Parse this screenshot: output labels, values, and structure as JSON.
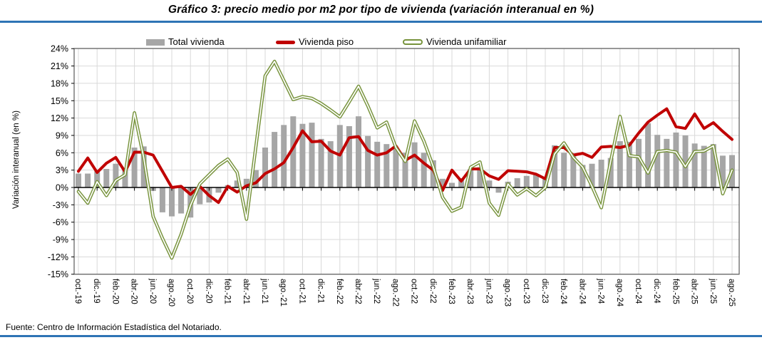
{
  "title": "Gráfico 3: precio medio por m2 por tipo de vivienda (variación interanual en %)",
  "accent_color": "#2E74B5",
  "legend": {
    "items": [
      {
        "label": "Total vivienda",
        "type": "bar",
        "color": "#A6A6A6"
      },
      {
        "label": "Vivienda piso",
        "type": "line",
        "color": "#C00000"
      },
      {
        "label": "Vivienda unifamiliar",
        "type": "outlined-line",
        "color": "#77933C"
      }
    ]
  },
  "y_axis": {
    "title": "Variación interanual (en %)",
    "tick_labels": [
      "24%",
      "21%",
      "18%",
      "15%",
      "12%",
      "9%",
      "6%",
      "3%",
      "0%",
      "-3%",
      "-6%",
      "-9%",
      "-12%",
      "-15%"
    ],
    "min": -15,
    "max": 24,
    "step": 3
  },
  "x_axis": {
    "tick_labels": [
      "oct.-19",
      "dic.-19",
      "feb.-20",
      "abr.-20",
      "jun.-20",
      "ago.-20",
      "oct.-20",
      "dic.-20",
      "feb.-21",
      "abr.-21",
      "jun.-21",
      "ago.-21",
      "oct.-21",
      "dic.-21",
      "feb.-22",
      "abr.-22",
      "jun.-22",
      "ago.-22",
      "oct.-22",
      "dic.-22",
      "feb.-23",
      "abr.-23",
      "jun.-23",
      "ago.-23",
      "oct.-23",
      "dic.-23",
      "feb.-24",
      "abr.-24",
      "jun.-24",
      "ago.-24",
      "oct.-24",
      "dic.-24",
      "feb.-25",
      "abr.-25",
      "jun.-25",
      "ago.-25"
    ],
    "label_interval_months": 2
  },
  "footer": {
    "source": "Fuente: Centro de Información Estadística del Notariado."
  },
  "chart_data": {
    "type": "bar",
    "subtype": "combo-bar-lines",
    "title": "Gráfico 3: precio medio por m2 por tipo de vivienda (variación interanual en %)",
    "xlabel": "",
    "ylabel": "Variación interanual (en %)",
    "ylim": [
      -15,
      24
    ],
    "grid": true,
    "legend_position": "top",
    "x": [
      "oct-19",
      "nov-19",
      "dic-19",
      "ene-20",
      "feb-20",
      "mar-20",
      "abr-20",
      "may-20",
      "jun-20",
      "jul-20",
      "ago-20",
      "sep-20",
      "oct-20",
      "nov-20",
      "dic-20",
      "ene-21",
      "feb-21",
      "mar-21",
      "abr-21",
      "may-21",
      "jun-21",
      "jul-21",
      "ago-21",
      "sep-21",
      "oct-21",
      "nov-21",
      "dic-21",
      "ene-22",
      "feb-22",
      "mar-22",
      "abr-22",
      "may-22",
      "jun-22",
      "jul-22",
      "ago-22",
      "sep-22",
      "oct-22",
      "nov-22",
      "dic-22",
      "ene-23",
      "feb-23",
      "mar-23",
      "abr-23",
      "may-23",
      "jun-23",
      "jul-23",
      "ago-23",
      "sep-23",
      "oct-23",
      "nov-23",
      "dic-23",
      "ene-24",
      "feb-24",
      "mar-24",
      "abr-24",
      "may-24",
      "jun-24",
      "jul-24",
      "ago-24",
      "sep-24",
      "oct-24",
      "nov-24",
      "dic-24",
      "ene-25",
      "feb-25",
      "mar-25",
      "abr-25",
      "may-25",
      "jun-25",
      "jul-25",
      "ago-25"
    ],
    "series": [
      {
        "name": "Total vivienda",
        "type": "bar",
        "color": "#A6A6A6",
        "values": [
          2.4,
          2.4,
          2.8,
          3.2,
          4.1,
          3.3,
          6.9,
          7.1,
          -0.6,
          -4.3,
          -5.0,
          -4.5,
          -5.2,
          -2.9,
          -2.6,
          -0.9,
          0.4,
          1.2,
          1.5,
          3.0,
          6.9,
          9.6,
          10.8,
          12.3,
          11.0,
          11.2,
          8.4,
          8.0,
          10.8,
          10.6,
          12.3,
          8.9,
          7.9,
          7.5,
          6.9,
          6.0,
          7.8,
          6.0,
          4.7,
          1.5,
          0.8,
          1.6,
          3.2,
          3.5,
          1.2,
          -0.9,
          1.0,
          1.6,
          2.0,
          2.2,
          1.8,
          7.3,
          6.0,
          5.8,
          3.9,
          4.1,
          4.8,
          5.1,
          8.0,
          7.9,
          8.4,
          11.1,
          9.1,
          8.4,
          9.5,
          9.0,
          7.6,
          7.2,
          7.5,
          5.5,
          5.6
        ]
      },
      {
        "name": "Vivienda piso",
        "type": "line",
        "color": "#C00000",
        "values": [
          2.8,
          5.1,
          2.6,
          4.2,
          5.2,
          2.7,
          6.1,
          6.1,
          5.6,
          2.8,
          0.0,
          0.2,
          -1.2,
          0.2,
          -1.4,
          -2.6,
          0.2,
          -0.8,
          0.3,
          0.8,
          2.4,
          3.2,
          4.3,
          6.9,
          9.8,
          7.9,
          8.0,
          6.3,
          5.6,
          8.6,
          8.8,
          6.4,
          5.6,
          6.0,
          7.2,
          4.7,
          5.6,
          4.2,
          3.0,
          -0.5,
          3.0,
          1.1,
          3.2,
          3.2,
          2.0,
          1.4,
          2.9,
          2.8,
          2.7,
          2.3,
          1.5,
          6.9,
          6.9,
          5.6,
          5.9,
          5.2,
          7.0,
          7.1,
          6.9,
          7.3,
          9.4,
          11.3,
          12.5,
          13.6,
          10.5,
          10.2,
          12.7,
          10.2,
          11.2,
          9.7,
          8.3
        ]
      },
      {
        "name": "Vivienda unifamiliar",
        "type": "outlined-line",
        "color": "#77933C",
        "values": [
          -0.7,
          -2.7,
          1.0,
          -1.4,
          1.2,
          2.2,
          12.9,
          5.1,
          -5.0,
          -8.8,
          -12.2,
          -8.1,
          -3.1,
          0.6,
          2.2,
          3.8,
          4.9,
          2.6,
          -5.5,
          7.0,
          19.3,
          21.8,
          18.5,
          15.2,
          15.7,
          15.4,
          14.5,
          13.4,
          12.2,
          14.8,
          17.5,
          14.1,
          10.3,
          11.3,
          6.9,
          4.5,
          11.5,
          8.0,
          3.6,
          -1.7,
          -4.1,
          -3.4,
          3.5,
          4.4,
          -2.7,
          -4.8,
          0.6,
          -1.3,
          -0.2,
          -1.4,
          0.0,
          5.8,
          7.7,
          5.2,
          3.5,
          0.2,
          -3.5,
          4.5,
          12.3,
          5.5,
          5.3,
          2.5,
          6.2,
          6.4,
          6.1,
          3.6,
          6.2,
          6.3,
          7.2,
          -1.1,
          3.0
        ]
      }
    ]
  }
}
